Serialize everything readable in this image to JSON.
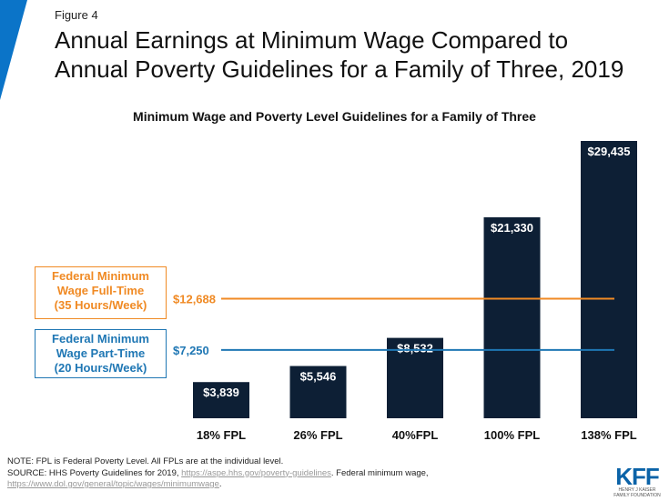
{
  "figure_label": "Figure 4",
  "title_line1": "Annual Earnings at Minimum Wage Compared to",
  "title_line2": "Annual Poverty Guidelines for a Family of Three, 2019",
  "colors": {
    "bar": "#0d1f35",
    "orange": "#f08a24",
    "blue": "#1f77b4",
    "corner": "#0b74c8"
  },
  "chart_data": {
    "type": "bar",
    "title": "Minimum Wage and Poverty Level Guidelines for a Family of Three",
    "categories": [
      "18% FPL",
      "26% FPL",
      "40%FPL",
      "100% FPL",
      "138% FPL"
    ],
    "values": [
      3839,
      5546,
      8532,
      21330,
      29435
    ],
    "value_labels": [
      "$3,839",
      "$5,546",
      "$8,532",
      "$21,330",
      "$29,435"
    ],
    "reference_lines": [
      {
        "label_lines": [
          "Federal Minimum",
          "Wage Full-Time",
          "(35 Hours/Week)"
        ],
        "value": 12688,
        "value_label": "$12,688",
        "color": "#f08a24"
      },
      {
        "label_lines": [
          "Federal Minimum",
          "Wage Part-Time",
          "(20 Hours/Week)"
        ],
        "value": 7250,
        "value_label": "$7,250",
        "color": "#1f77b4"
      }
    ],
    "ylim": [
      0,
      29435
    ]
  },
  "footnote": {
    "note": "NOTE: FPL is Federal Poverty Level.  All FPLs are at the individual  level.",
    "source_prefix": "SOURCE: HHS Poverty Guidelines for 2019, ",
    "source_link1": "https://aspe.hhs.gov/poverty-guidelines",
    "source_mid": ".  Federal minimum wage,",
    "source_link2": "https://www.dol.gov/general/topic/wages/minimumwage",
    "source_end": "."
  },
  "logo": {
    "name": "KFF",
    "sub1": "HENRY J KAISER",
    "sub2": "FAMILY FOUNDATION"
  }
}
